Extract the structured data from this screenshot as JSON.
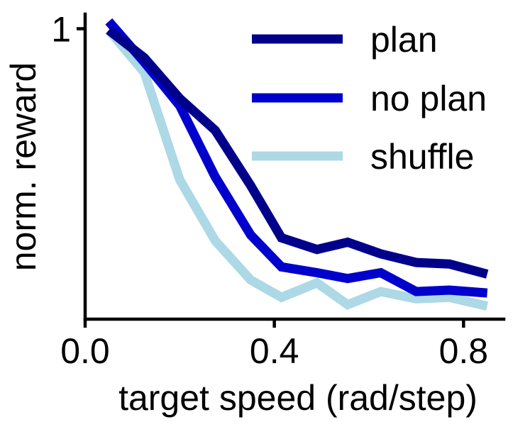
{
  "chart_data": {
    "type": "line",
    "xlabel": "target speed (rad/step)",
    "ylabel": "norm. reward",
    "xlim": [
      0.0,
      0.885
    ],
    "ylim": [
      0.0,
      1.05
    ],
    "x_ticks": [
      0.0,
      0.4,
      0.8
    ],
    "x_tick_labels": [
      "0.0",
      "0.4",
      "0.8"
    ],
    "y_ticks": [
      1
    ],
    "y_tick_labels": [
      "1"
    ],
    "grid": false,
    "legend_position": "top-right",
    "x": [
      0.05,
      0.125,
      0.2,
      0.275,
      0.35,
      0.415,
      0.49,
      0.555,
      0.625,
      0.7,
      0.77,
      0.85
    ],
    "series": [
      {
        "name": "plan",
        "color": "#00008b",
        "values": [
          0.995,
          0.9,
          0.76,
          0.65,
          0.46,
          0.28,
          0.24,
          0.265,
          0.225,
          0.195,
          0.19,
          0.155
        ]
      },
      {
        "name": "no plan",
        "color": "#0000cd",
        "values": [
          1.025,
          0.885,
          0.735,
          0.49,
          0.29,
          0.18,
          0.16,
          0.14,
          0.16,
          0.095,
          0.1,
          0.09
        ]
      },
      {
        "name": "shuffle",
        "color": "#add8e6",
        "values": [
          0.995,
          0.85,
          0.48,
          0.27,
          0.135,
          0.075,
          0.125,
          0.05,
          0.095,
          0.07,
          0.075,
          0.045
        ]
      }
    ]
  }
}
